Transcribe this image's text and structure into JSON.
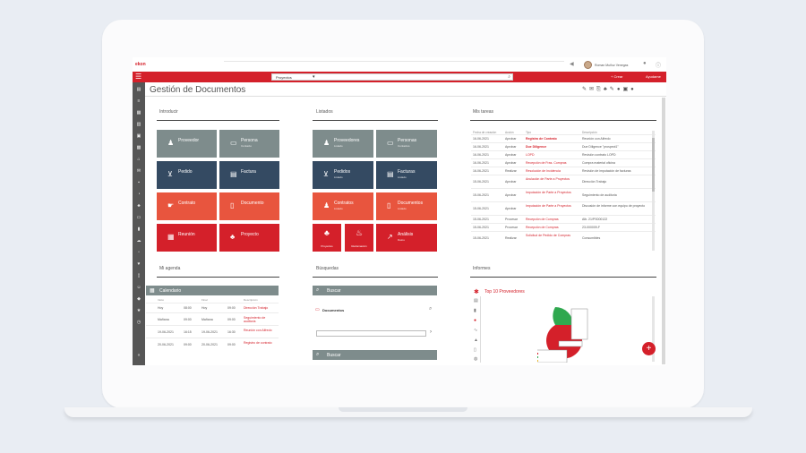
{
  "app": {
    "brand": "ekon",
    "user_name": "Roman Muñoz Venegas"
  },
  "toolbar": {
    "search_value": "Proyectos",
    "crear_label": "+ Crear",
    "ayuda_label": "Ayudame"
  },
  "page": {
    "title": "Gestión de Documentos"
  },
  "sections": {
    "introducir": "Introducir",
    "listados": "Listados",
    "mis_tareas": "Mis tareas",
    "mi_agenda": "Mi agenda",
    "busquedas": "Búsquedas",
    "informes": "Informes"
  },
  "introducir_tiles": [
    {
      "label": "Proveedor",
      "sub": "",
      "icon": "people-icon"
    },
    {
      "label": "Persona",
      "sub": "Contacto",
      "icon": "id-card-icon"
    },
    {
      "label": "Pedido",
      "sub": "",
      "icon": "cart-icon"
    },
    {
      "label": "Factura",
      "sub": "",
      "icon": "invoice-icon"
    },
    {
      "label": "Contrato",
      "sub": "",
      "icon": "handshake-icon"
    },
    {
      "label": "Documento",
      "sub": "",
      "icon": "document-icon"
    },
    {
      "label": "Reunión",
      "sub": "",
      "icon": "calendar-icon"
    },
    {
      "label": "Proyecto",
      "sub": "",
      "icon": "org-chart-icon"
    }
  ],
  "listados_tiles": [
    {
      "label": "Proveedores",
      "sub": "Listado"
    },
    {
      "label": "Personas",
      "sub": "Contactos"
    },
    {
      "label": "Pedidos",
      "sub": "Listado"
    },
    {
      "label": "Facturas",
      "sub": "Listado"
    },
    {
      "label": "Contratos",
      "sub": "Listado"
    },
    {
      "label": "Documentos",
      "sub": "Listado"
    },
    {
      "label": "Proyectos",
      "sub": ""
    },
    {
      "label": "Reclamación",
      "sub": ""
    },
    {
      "label": "Análisis",
      "sub": "Datos"
    }
  ],
  "tasks": {
    "headers": [
      "Fecha de creación",
      "Acción",
      "Tipo",
      "Descripción"
    ],
    "rows": [
      [
        "16-06-2021",
        "Aprobar",
        "Registro de Contrato",
        "Reunión con Alfredo"
      ],
      [
        "16-06-2021",
        "Aprobar",
        "Due Diligence",
        "Due Diligence \"prospect1\""
      ],
      [
        "16-06-2021",
        "Aprobar",
        "LOPD",
        "Revisión contrato LOPD"
      ],
      [
        "16-06-2021",
        "Aprobar",
        "Recepción de Fras. Compras",
        "Compra material oficina"
      ],
      [
        "16-06-2021",
        "Realizar",
        "Resolución de Incidencia",
        "Revisión de imputación de facturas"
      ],
      [
        "15-06-2021",
        "Aprobar",
        "Anulación de Parte a Proyectos",
        "Dirección Trabajo"
      ],
      [
        "15-06-2021",
        "Aprobar",
        "Imputación de Parte a Proyectos",
        "Seguimiento de auditoria"
      ],
      [
        "15-06-2021",
        "Aprobar",
        "Imputación de Parte a Proyectos",
        "Discusión de informe con equipo de proyecto"
      ],
      [
        "15-06-2021",
        "Procesar",
        "Recepción de Compras",
        "Alb. 21/PS000122"
      ],
      [
        "15-06-2021",
        "Procesar",
        "Recepción de Compras",
        "23-000009-F"
      ],
      [
        "15-06-2021",
        "Realizar",
        "Solicitud de Pedido de Compras",
        "Consumibles"
      ]
    ]
  },
  "agenda": {
    "title": "Calendario",
    "headers": [
      "Inicio",
      "",
      "Final",
      "",
      "Descripción"
    ],
    "rows": [
      [
        "Hoy",
        "08:00",
        "Hoy",
        "09:00",
        "Dirección Trabajo"
      ],
      [
        "Mañana",
        "09:00",
        "Mañana",
        "09:00",
        "Seguimiento de auditoria"
      ],
      [
        "19-06-2021",
        "16:15",
        "19-06-2021",
        "16:30",
        "Reunión con Alfredo"
      ],
      [
        "20-06-2021",
        "09:00",
        "20-06-2021",
        "09:00",
        "Registro de contrato"
      ]
    ]
  },
  "busquedas": {
    "buscar": "Buscar",
    "documentos": "Documentos",
    "buscar2": "Buscar"
  },
  "informes": {
    "title": "Top 10 Proveedores"
  },
  "colors": {
    "accent": "#d4202a",
    "navy": "#344a62",
    "gray": "#7e8c8c",
    "coral": "#e8553e",
    "sidebar": "#565656"
  }
}
